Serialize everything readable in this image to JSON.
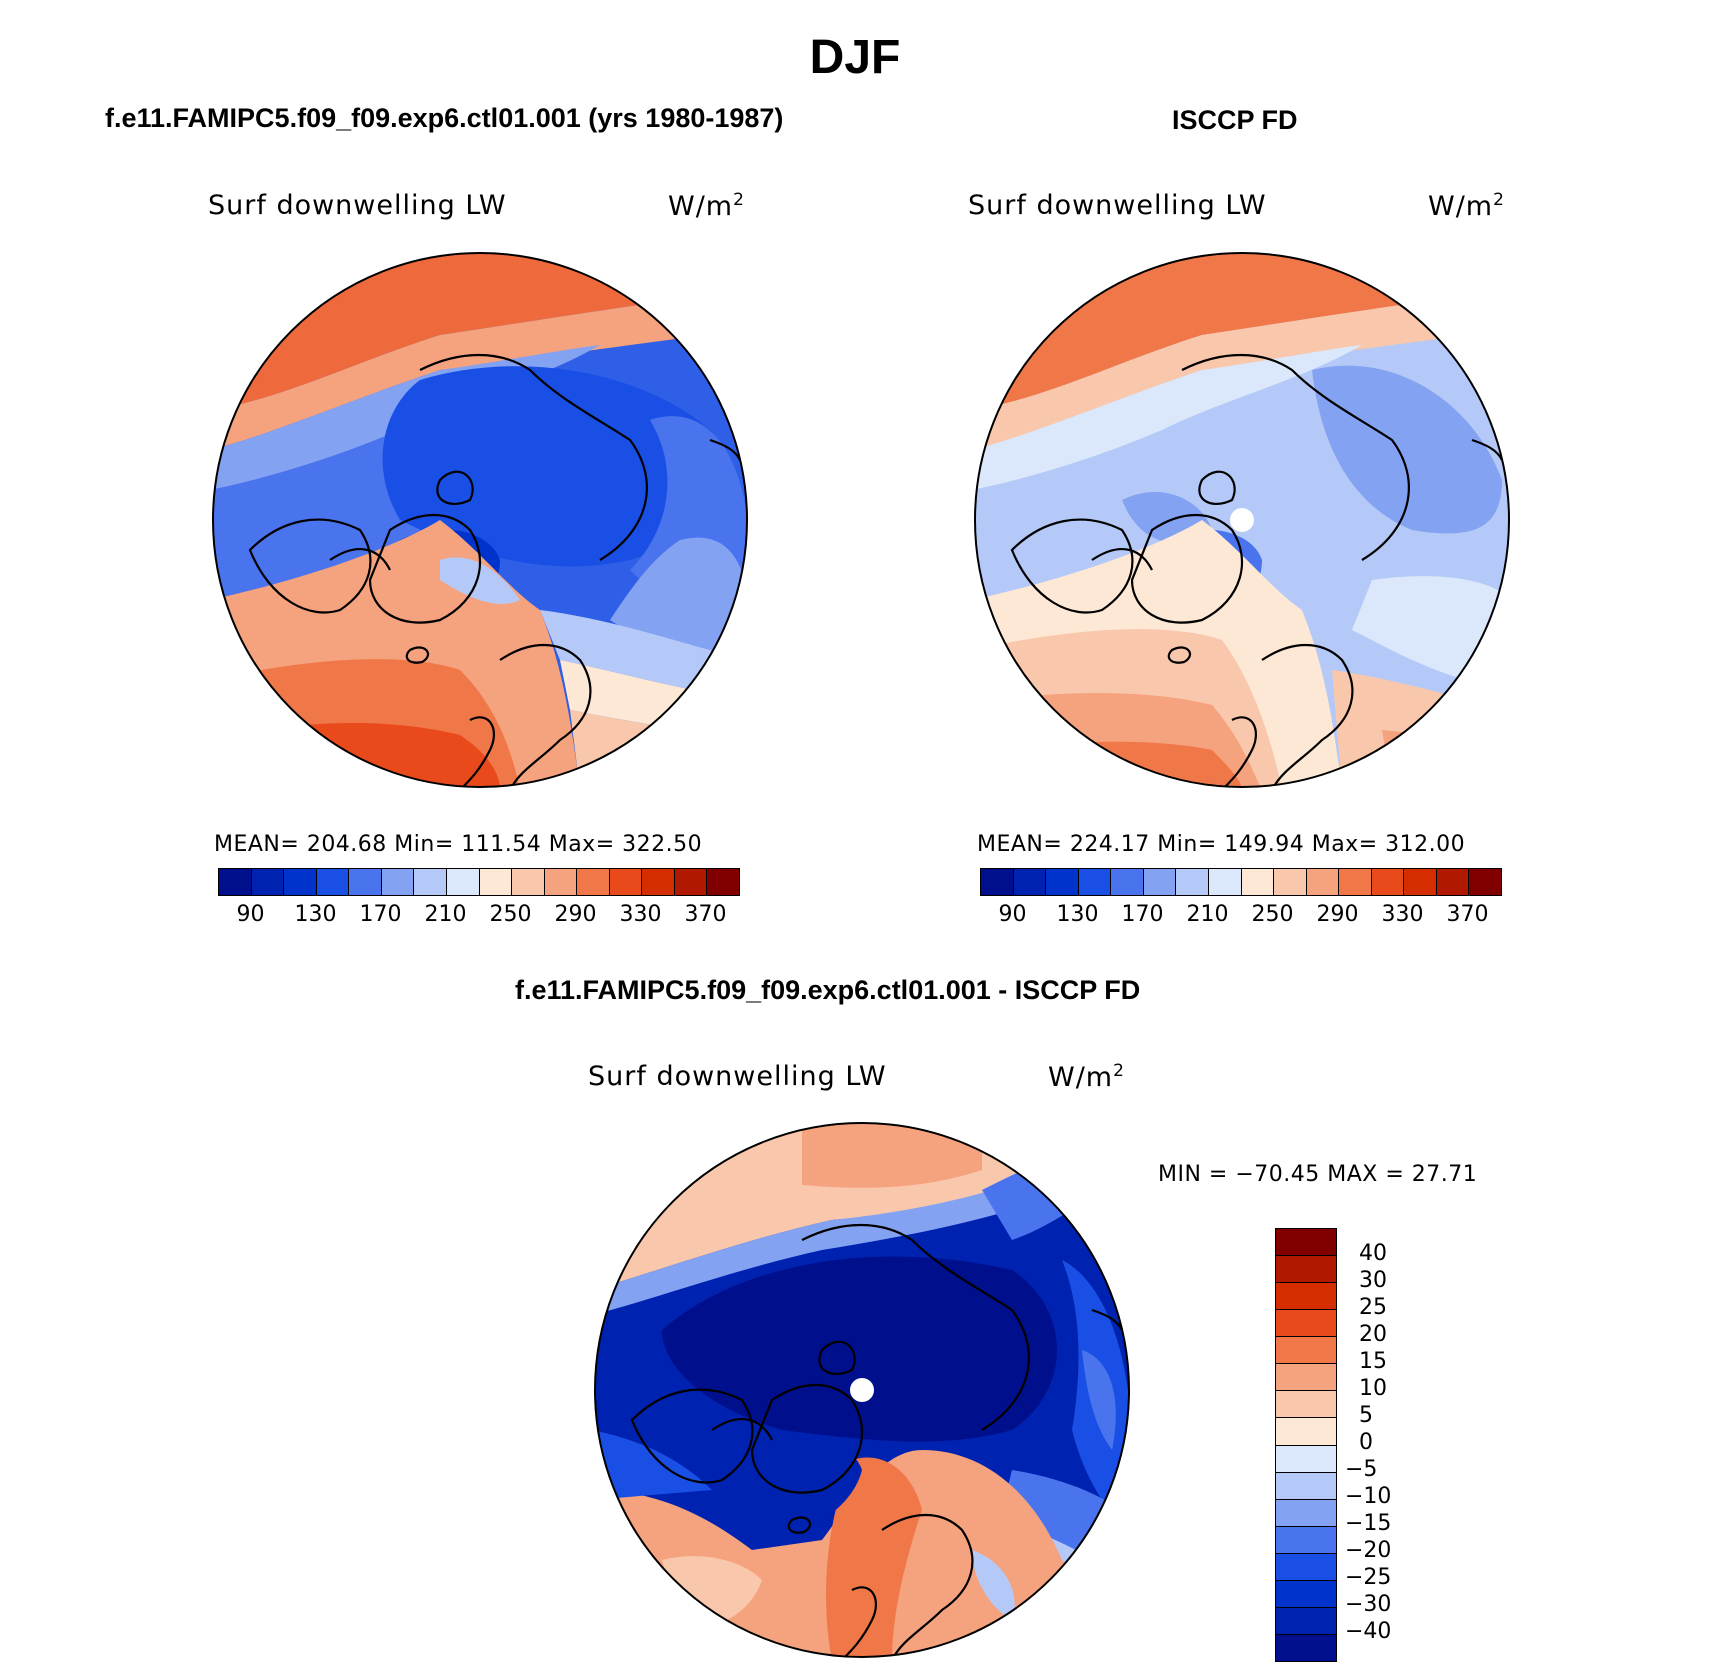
{
  "figure": {
    "title": "DJF"
  },
  "panels": {
    "model": {
      "header": "f.e11.FAMIPC5.f09_f09.exp6.ctl01.001 (yrs 1980-1987)",
      "variable": "Surf downwelling LW",
      "units_base": "W/m",
      "units_exp": "2",
      "stats_line": "MEAN= 204.68   Min= 111.54   Max= 322.50",
      "mean": 204.68,
      "min": 111.54,
      "max": 322.5
    },
    "obs": {
      "header": "ISCCP FD",
      "variable": "Surf downwelling LW",
      "units_base": "W/m",
      "units_exp": "2",
      "stats_line": "MEAN= 224.17   Min= 149.94   Max= 312.00",
      "mean": 224.17,
      "min": 149.94,
      "max": 312.0
    },
    "diff": {
      "header": "f.e11.FAMIPC5.f09_f09.exp6.ctl01.001 - ISCCP FD",
      "variable": "Surf downwelling LW",
      "units_base": "W/m",
      "units_exp": "2",
      "stats_line": "MIN = −70.45 MAX =  27.71",
      "min": -70.45,
      "max": 27.71
    }
  },
  "colorbar_main": {
    "colors": [
      "#00108c",
      "#0022b0",
      "#0033cc",
      "#1a4fe6",
      "#4a74ee",
      "#84a2f2",
      "#b4c9f7",
      "#dbe8fb",
      "#fde8d6",
      "#f9c8ac",
      "#f5a27e",
      "#f07848",
      "#e84a1c",
      "#d42e00",
      "#b01800",
      "#800000"
    ],
    "tick_labels": [
      "90",
      "130",
      "170",
      "210",
      "250",
      "290",
      "330",
      "370"
    ]
  },
  "colorbar_diff": {
    "colors": [
      "#800000",
      "#b01800",
      "#d42e00",
      "#e84a1c",
      "#f07848",
      "#f5a27e",
      "#f9c8ac",
      "#fde8d6",
      "#dbe8fb",
      "#b4c9f7",
      "#84a2f2",
      "#4a74ee",
      "#1a4fe6",
      "#0033cc",
      "#0022b0",
      "#00108c"
    ],
    "tick_labels": [
      "40",
      "30",
      "25",
      "20",
      "15",
      "10",
      "5",
      "0",
      "−5",
      "−10",
      "−15",
      "−20",
      "−25",
      "−30",
      "−40"
    ]
  }
}
